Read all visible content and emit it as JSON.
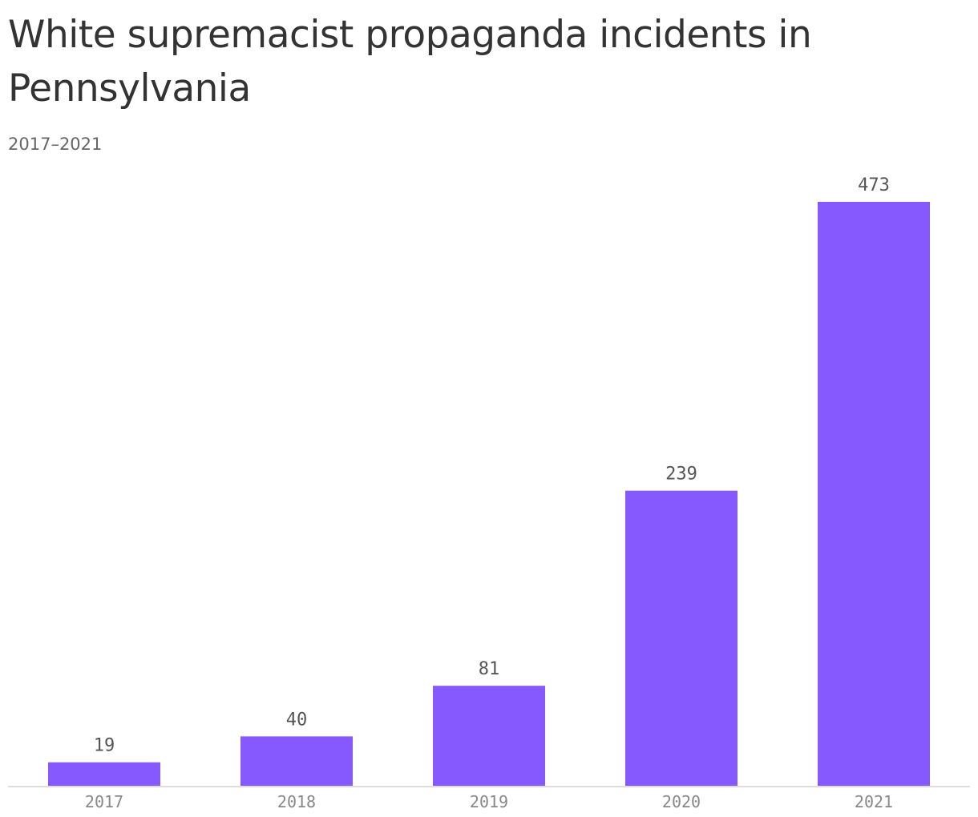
{
  "chart_data": {
    "type": "bar",
    "title": "White supremacist propaganda incidents in Pennsylvania",
    "subtitle": "2017–2021",
    "categories": [
      "2017",
      "2018",
      "2019",
      "2020",
      "2021"
    ],
    "values": [
      19,
      40,
      81,
      239,
      473
    ],
    "ylim": [
      0,
      473
    ],
    "grid": false,
    "legend": "none",
    "colors": {
      "bar": "#8659ff",
      "title": "#333333",
      "subtitle": "#666666",
      "data_label": "#555555",
      "tick_label": "#888888",
      "baseline": "#dddddd"
    }
  }
}
